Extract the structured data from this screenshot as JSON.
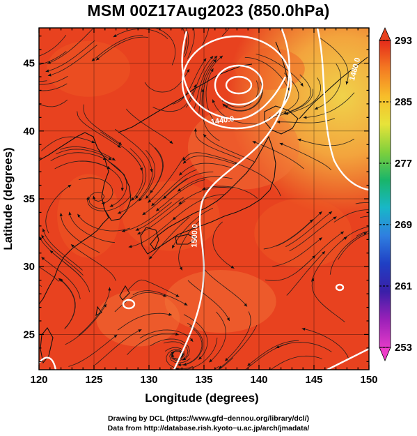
{
  "title": "MSM 00Z17Aug2023 (850.0hPa)",
  "map": {
    "xlabel": "Longitude (degrees)",
    "ylabel": "Latitude  (degrees)",
    "xlim": [
      120,
      150
    ],
    "ylim": [
      22.4,
      47.6
    ],
    "xticks": [
      "120",
      "125",
      "130",
      "135",
      "140",
      "145",
      "150"
    ],
    "xtick_values": [
      120,
      125,
      130,
      135,
      140,
      145,
      150
    ],
    "yticks": [
      "25",
      "30",
      "35",
      "40",
      "45"
    ],
    "ytick_values": [
      25,
      30,
      35,
      40,
      45
    ],
    "contour_labels": [
      "1440.0",
      "1500.0",
      "1480.0"
    ],
    "field_colors": [
      "#e8421f",
      "#ef5a24",
      "#f4783a",
      "#f3a43d",
      "#f0d24a"
    ]
  },
  "colorbar": {
    "ticks": [
      "293",
      "285",
      "277",
      "269",
      "261",
      "253"
    ],
    "values": [
      293,
      285,
      277,
      269,
      261,
      253
    ],
    "range": [
      253,
      293
    ],
    "colors": [
      "#e42a1a",
      "#f47a22",
      "#f7bd2a",
      "#e7e33a",
      "#7fd03c",
      "#19b56a",
      "#18b7c8",
      "#2f7fe0",
      "#1f3fc4",
      "#3a1fa8",
      "#9a20b8",
      "#e23ac8"
    ]
  },
  "credits": {
    "line1": "Drawing by DCL (https://www.gfd−dennou.org/library/dcl/)",
    "line2": "Data from http://database.rish.kyoto−u.ac.jp/arch/jmadata/"
  }
}
